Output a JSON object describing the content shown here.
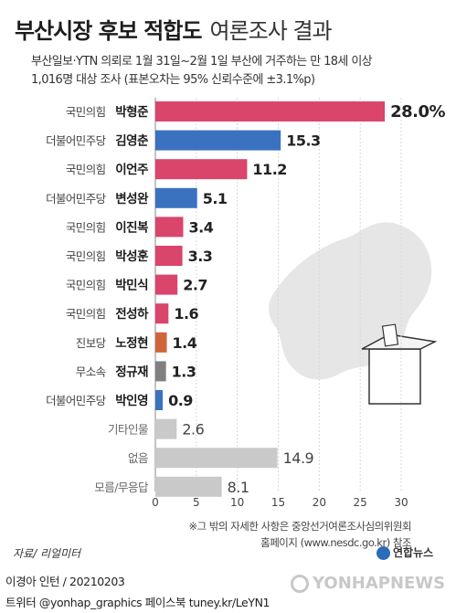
{
  "header": {
    "title_bold": "부산시장 후보 적합도",
    "title_light": "여론조사 결과",
    "subtitle_line1": "부산일보·YTN 의뢰로 1월 31일~2월 1일 부산에 거주하는 만 18세 이상",
    "subtitle_line2": "1,016명 대상 조사 (표본오차는 95% 신뢰수준에 ±3.1%p)"
  },
  "chart_data": {
    "type": "bar",
    "orientation": "horizontal",
    "categories": [
      {
        "party": "국민의힘",
        "name": "박형준",
        "value": 28.0,
        "label": "28.0%"
      },
      {
        "party": "더불어민주당",
        "name": "김영춘",
        "value": 15.3,
        "label": "15.3"
      },
      {
        "party": "국민의힘",
        "name": "이언주",
        "value": 11.2,
        "label": "11.2"
      },
      {
        "party": "더불어민주당",
        "name": "변성완",
        "value": 5.1,
        "label": "5.1"
      },
      {
        "party": "국민의힘",
        "name": "이진복",
        "value": 3.4,
        "label": "3.4"
      },
      {
        "party": "국민의힘",
        "name": "박성훈",
        "value": 3.3,
        "label": "3.3"
      },
      {
        "party": "국민의힘",
        "name": "박민식",
        "value": 2.7,
        "label": "2.7"
      },
      {
        "party": "국민의힘",
        "name": "전성하",
        "value": 1.6,
        "label": "1.6"
      },
      {
        "party": "진보당",
        "name": "노정현",
        "value": 1.4,
        "label": "1.4"
      },
      {
        "party": "무소속",
        "name": "정규재",
        "value": 1.3,
        "label": "1.3"
      },
      {
        "party": "더불어민주당",
        "name": "박인영",
        "value": 0.9,
        "label": "0.9"
      },
      {
        "party": "",
        "name": "기타인물",
        "value": 2.6,
        "label": "2.6"
      },
      {
        "party": "",
        "name": "없음",
        "value": 14.9,
        "label": "14.9"
      },
      {
        "party": "",
        "name": "모름/무응답",
        "value": 8.1,
        "label": "8.1"
      }
    ],
    "xlim": [
      0,
      30
    ],
    "xticks": [
      "0",
      "5",
      "10",
      "15",
      "20",
      "25",
      "30"
    ],
    "party_colors": {
      "국민의힘": "#d9456b",
      "더불어민주당": "#3b72c0",
      "진보당": "#d0643a",
      "무소속": "#808080",
      "": "#c9c9c9"
    }
  },
  "footer": {
    "note_line1": "※그 밖의 자세한 사항은 중앙선거여론조사심의위원회",
    "note_line2": "홈페이지 (www.nesdc.go.kr) 참조",
    "source": "자료/ 리얼미터",
    "byline": "이경아 인턴 / 20210203",
    "social": "트위터 @yonhap_graphics  페이스북 tuney.kr/LeYN1",
    "logo_text": "연합뉴스",
    "watermark": "YONHAPNEWS"
  }
}
